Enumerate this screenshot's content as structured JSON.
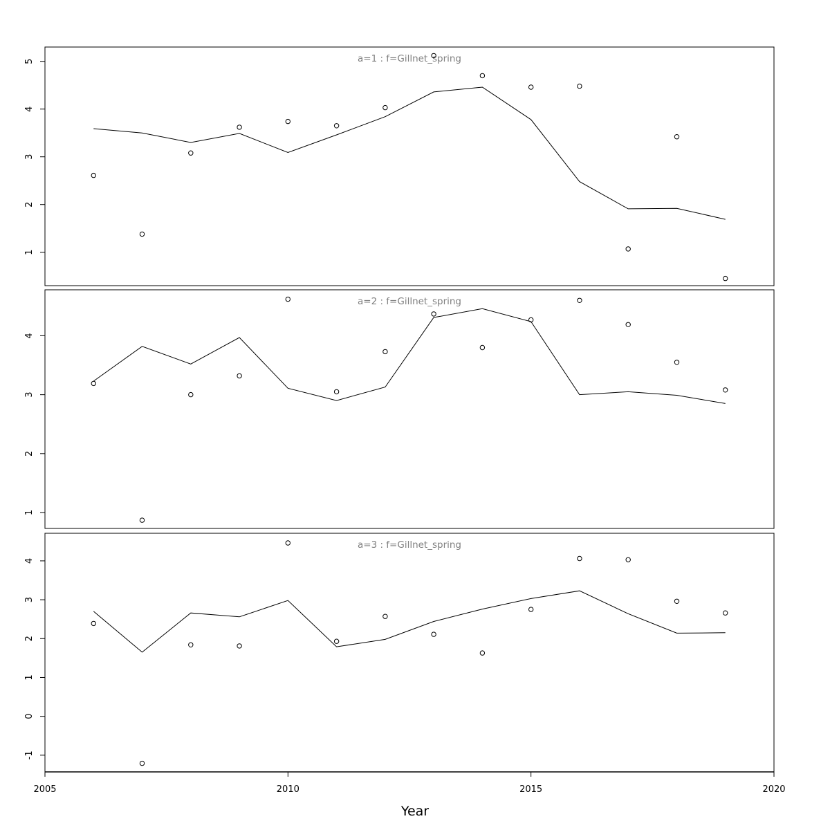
{
  "chart_data": [
    {
      "type": "line",
      "title": "a=1  :  f=Gillnet_spring",
      "xlabel": "Year",
      "ylabel": "",
      "xlim": [
        2005,
        2020
      ],
      "ylim": [
        0.3,
        5.3
      ],
      "y_ticks": [
        1,
        2,
        3,
        4,
        5
      ],
      "x": [
        2006,
        2007,
        2008,
        2009,
        2010,
        2011,
        2012,
        2013,
        2014,
        2015,
        2016,
        2017,
        2018,
        2019
      ],
      "series": [
        {
          "style": "line",
          "values": [
            3.59,
            3.5,
            3.3,
            3.49,
            3.09,
            3.46,
            3.84,
            4.36,
            4.46,
            3.78,
            2.48,
            1.91,
            1.92,
            1.69
          ]
        },
        {
          "style": "points",
          "values": [
            2.61,
            1.38,
            3.08,
            3.62,
            3.74,
            3.65,
            4.03,
            5.12,
            4.7,
            4.46,
            4.48,
            1.07,
            3.42,
            0.45
          ]
        }
      ]
    },
    {
      "type": "line",
      "title": "a=2  :  f=Gillnet_spring",
      "xlabel": "Year",
      "ylabel": "",
      "xlim": [
        2005,
        2020
      ],
      "ylim": [
        0.73,
        4.78
      ],
      "y_ticks": [
        1,
        2,
        3,
        4
      ],
      "x": [
        2006,
        2007,
        2008,
        2009,
        2010,
        2011,
        2012,
        2013,
        2014,
        2015,
        2016,
        2017,
        2018,
        2019
      ],
      "series": [
        {
          "style": "line",
          "values": [
            3.23,
            3.82,
            3.52,
            3.97,
            3.11,
            2.9,
            3.13,
            4.31,
            4.46,
            4.24,
            3.0,
            3.05,
            2.99,
            2.85
          ]
        },
        {
          "style": "points",
          "values": [
            3.19,
            0.87,
            3.0,
            3.32,
            4.62,
            3.05,
            3.73,
            4.37,
            3.8,
            4.27,
            4.6,
            4.19,
            3.55,
            3.08
          ]
        }
      ]
    },
    {
      "type": "line",
      "title": "a=3  :  f=Gillnet_spring",
      "xlabel": "Year",
      "ylabel": "",
      "xlim": [
        2005,
        2020
      ],
      "ylim": [
        -1.43,
        4.71
      ],
      "y_ticks": [
        -1,
        0,
        1,
        2,
        3,
        4
      ],
      "x": [
        2006,
        2007,
        2008,
        2009,
        2010,
        2011,
        2012,
        2013,
        2014,
        2015,
        2016,
        2017,
        2018,
        2019
      ],
      "series": [
        {
          "style": "line",
          "values": [
            2.7,
            1.65,
            2.66,
            2.56,
            2.98,
            1.79,
            1.98,
            2.44,
            2.76,
            3.03,
            3.23,
            2.64,
            2.14,
            2.15
          ]
        },
        {
          "style": "points",
          "values": [
            2.39,
            -1.21,
            1.84,
            1.81,
            4.46,
            1.93,
            2.57,
            2.11,
            1.63,
            2.75,
            4.06,
            4.03,
            2.96,
            2.66
          ]
        }
      ]
    }
  ],
  "x_axis": {
    "label": "Year",
    "ticks": [
      2005,
      2010,
      2015,
      2020
    ],
    "tick_labels": [
      "2005",
      "2010",
      "2015",
      "2020"
    ]
  }
}
